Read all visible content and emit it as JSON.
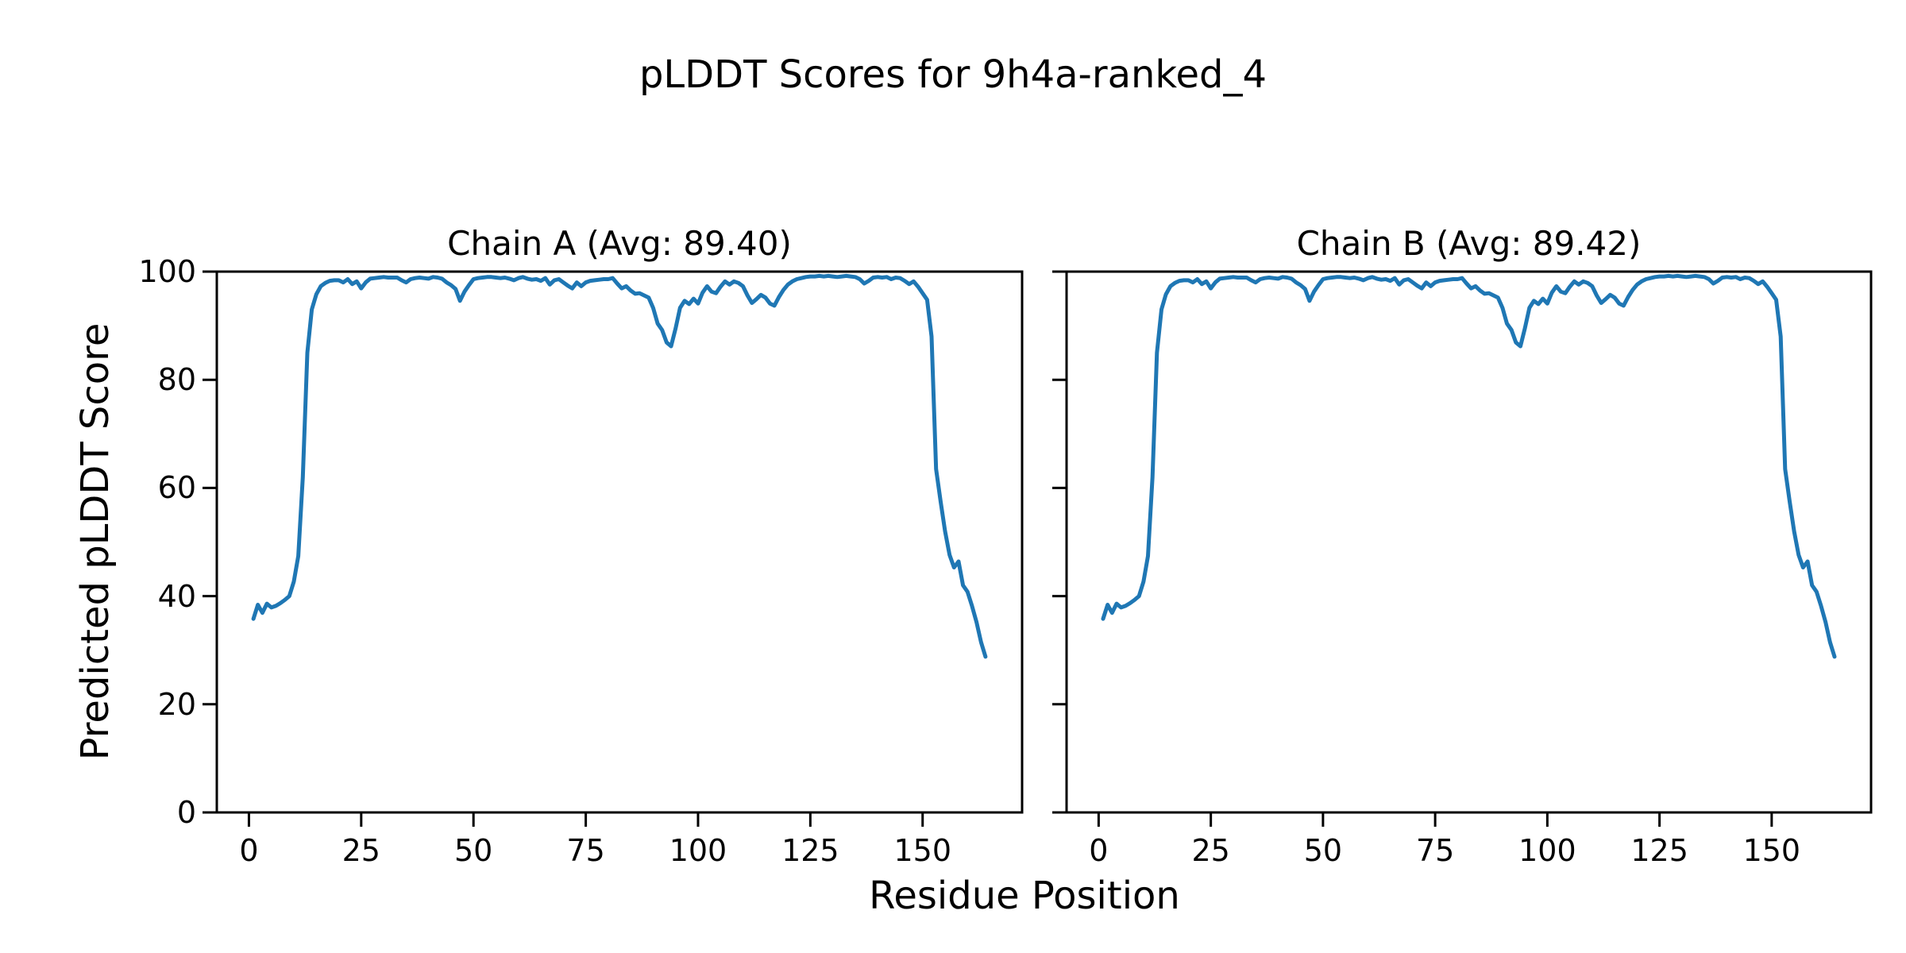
{
  "figure": {
    "title": "pLDDT Scores for 9h4a-ranked_4",
    "xlabel": "Residue Position",
    "ylabel": "Predicted pLDDT Score",
    "background": "#ffffff",
    "line_color": "#1f77b4",
    "axis_color": "#000000"
  },
  "chart_data": [
    {
      "type": "line",
      "title": "Chain A (Avg: 89.40)",
      "chain": "A",
      "avg": 89.4,
      "x_start": 1,
      "x_ticks": [
        0,
        25,
        50,
        75,
        100,
        125,
        150
      ],
      "y_ticks": [
        0,
        20,
        40,
        60,
        80,
        100
      ],
      "xlim": [
        -7.15,
        172.15
      ],
      "ylim": [
        0,
        100
      ],
      "grid": false,
      "legend": "none",
      "line_color": "#1f77b4",
      "values": [
        35.8,
        38.4,
        36.9,
        38.6,
        37.9,
        38.2,
        38.7,
        39.3,
        40.0,
        42.7,
        47.4,
        62.0,
        85.0,
        93.0,
        95.8,
        97.3,
        97.9,
        98.3,
        98.4,
        98.4,
        98.0,
        98.6,
        97.7,
        98.2,
        96.9,
        98.0,
        98.7,
        98.8,
        98.9,
        99.0,
        98.9,
        98.9,
        98.9,
        98.4,
        98.0,
        98.6,
        98.8,
        98.9,
        98.8,
        98.7,
        99.0,
        98.9,
        98.7,
        98.0,
        97.5,
        96.8,
        94.6,
        96.3,
        97.5,
        98.6,
        98.8,
        98.9,
        99.0,
        99.0,
        98.9,
        98.8,
        98.9,
        98.7,
        98.4,
        98.8,
        99.0,
        98.7,
        98.5,
        98.6,
        98.3,
        98.8,
        97.6,
        98.4,
        98.6,
        98.0,
        97.4,
        96.9,
        98.0,
        97.3,
        98.0,
        98.3,
        98.4,
        98.5,
        98.6,
        98.6,
        98.8,
        97.8,
        96.9,
        97.3,
        96.5,
        95.9,
        96.0,
        95.6,
        95.2,
        93.3,
        90.4,
        89.2,
        86.9,
        86.2,
        89.5,
        93.3,
        94.6,
        94.0,
        95.0,
        94.1,
        96.1,
        97.3,
        96.3,
        96.0,
        97.2,
        98.2,
        97.6,
        98.2,
        97.9,
        97.3,
        95.6,
        94.2,
        94.9,
        95.7,
        95.2,
        94.1,
        93.7,
        95.3,
        96.6,
        97.6,
        98.2,
        98.6,
        98.8,
        99.0,
        99.1,
        99.1,
        99.2,
        99.1,
        99.2,
        99.1,
        99.0,
        99.1,
        99.2,
        99.1,
        99.0,
        98.6,
        97.8,
        98.3,
        98.9,
        99.0,
        98.9,
        99.0,
        98.6,
        98.9,
        98.8,
        98.3,
        97.7,
        98.2,
        97.2,
        96.0,
        94.8,
        88.0,
        63.5,
        57.5,
        52.0,
        47.6,
        45.3,
        46.4,
        42.0,
        40.8,
        38.2,
        35.2,
        31.5,
        28.8
      ]
    },
    {
      "type": "line",
      "title": "Chain B (Avg: 89.42)",
      "chain": "B",
      "avg": 89.42,
      "x_start": 1,
      "x_ticks": [
        0,
        25,
        50,
        75,
        100,
        125,
        150
      ],
      "y_ticks": [
        0,
        20,
        40,
        60,
        80,
        100
      ],
      "xlim": [
        -7.15,
        172.15
      ],
      "ylim": [
        0,
        100
      ],
      "grid": false,
      "legend": "none",
      "line_color": "#1f77b4",
      "values": [
        35.8,
        38.4,
        36.9,
        38.6,
        37.9,
        38.2,
        38.7,
        39.3,
        40.0,
        42.7,
        47.4,
        62.0,
        85.0,
        93.0,
        95.8,
        97.3,
        97.9,
        98.3,
        98.4,
        98.4,
        98.0,
        98.6,
        97.7,
        98.2,
        96.9,
        98.0,
        98.7,
        98.8,
        98.9,
        99.0,
        98.9,
        98.9,
        98.9,
        98.4,
        98.0,
        98.6,
        98.8,
        98.9,
        98.8,
        98.7,
        99.0,
        98.9,
        98.7,
        98.0,
        97.5,
        96.8,
        94.6,
        96.3,
        97.5,
        98.6,
        98.8,
        98.9,
        99.0,
        99.0,
        98.9,
        98.8,
        98.9,
        98.7,
        98.4,
        98.8,
        99.0,
        98.7,
        98.5,
        98.6,
        98.3,
        98.8,
        97.6,
        98.4,
        98.6,
        98.0,
        97.4,
        96.9,
        98.0,
        97.3,
        98.0,
        98.3,
        98.4,
        98.5,
        98.6,
        98.6,
        98.8,
        97.8,
        96.9,
        97.3,
        96.5,
        95.9,
        96.0,
        95.6,
        95.2,
        93.3,
        90.4,
        89.2,
        86.9,
        86.2,
        89.5,
        93.3,
        94.6,
        94.0,
        95.0,
        94.1,
        96.1,
        97.3,
        96.3,
        96.0,
        97.2,
        98.2,
        97.6,
        98.2,
        97.9,
        97.3,
        95.6,
        94.2,
        94.9,
        95.7,
        95.2,
        94.1,
        93.7,
        95.3,
        96.6,
        97.6,
        98.2,
        98.6,
        98.8,
        99.0,
        99.1,
        99.1,
        99.2,
        99.1,
        99.2,
        99.1,
        99.0,
        99.1,
        99.2,
        99.1,
        99.0,
        98.6,
        97.8,
        98.3,
        98.9,
        99.0,
        98.9,
        99.0,
        98.6,
        98.9,
        98.8,
        98.3,
        97.7,
        98.2,
        97.2,
        96.0,
        94.8,
        88.0,
        63.5,
        57.5,
        52.0,
        47.6,
        45.3,
        46.4,
        42.0,
        40.8,
        38.2,
        35.2,
        31.5,
        28.8
      ]
    }
  ]
}
